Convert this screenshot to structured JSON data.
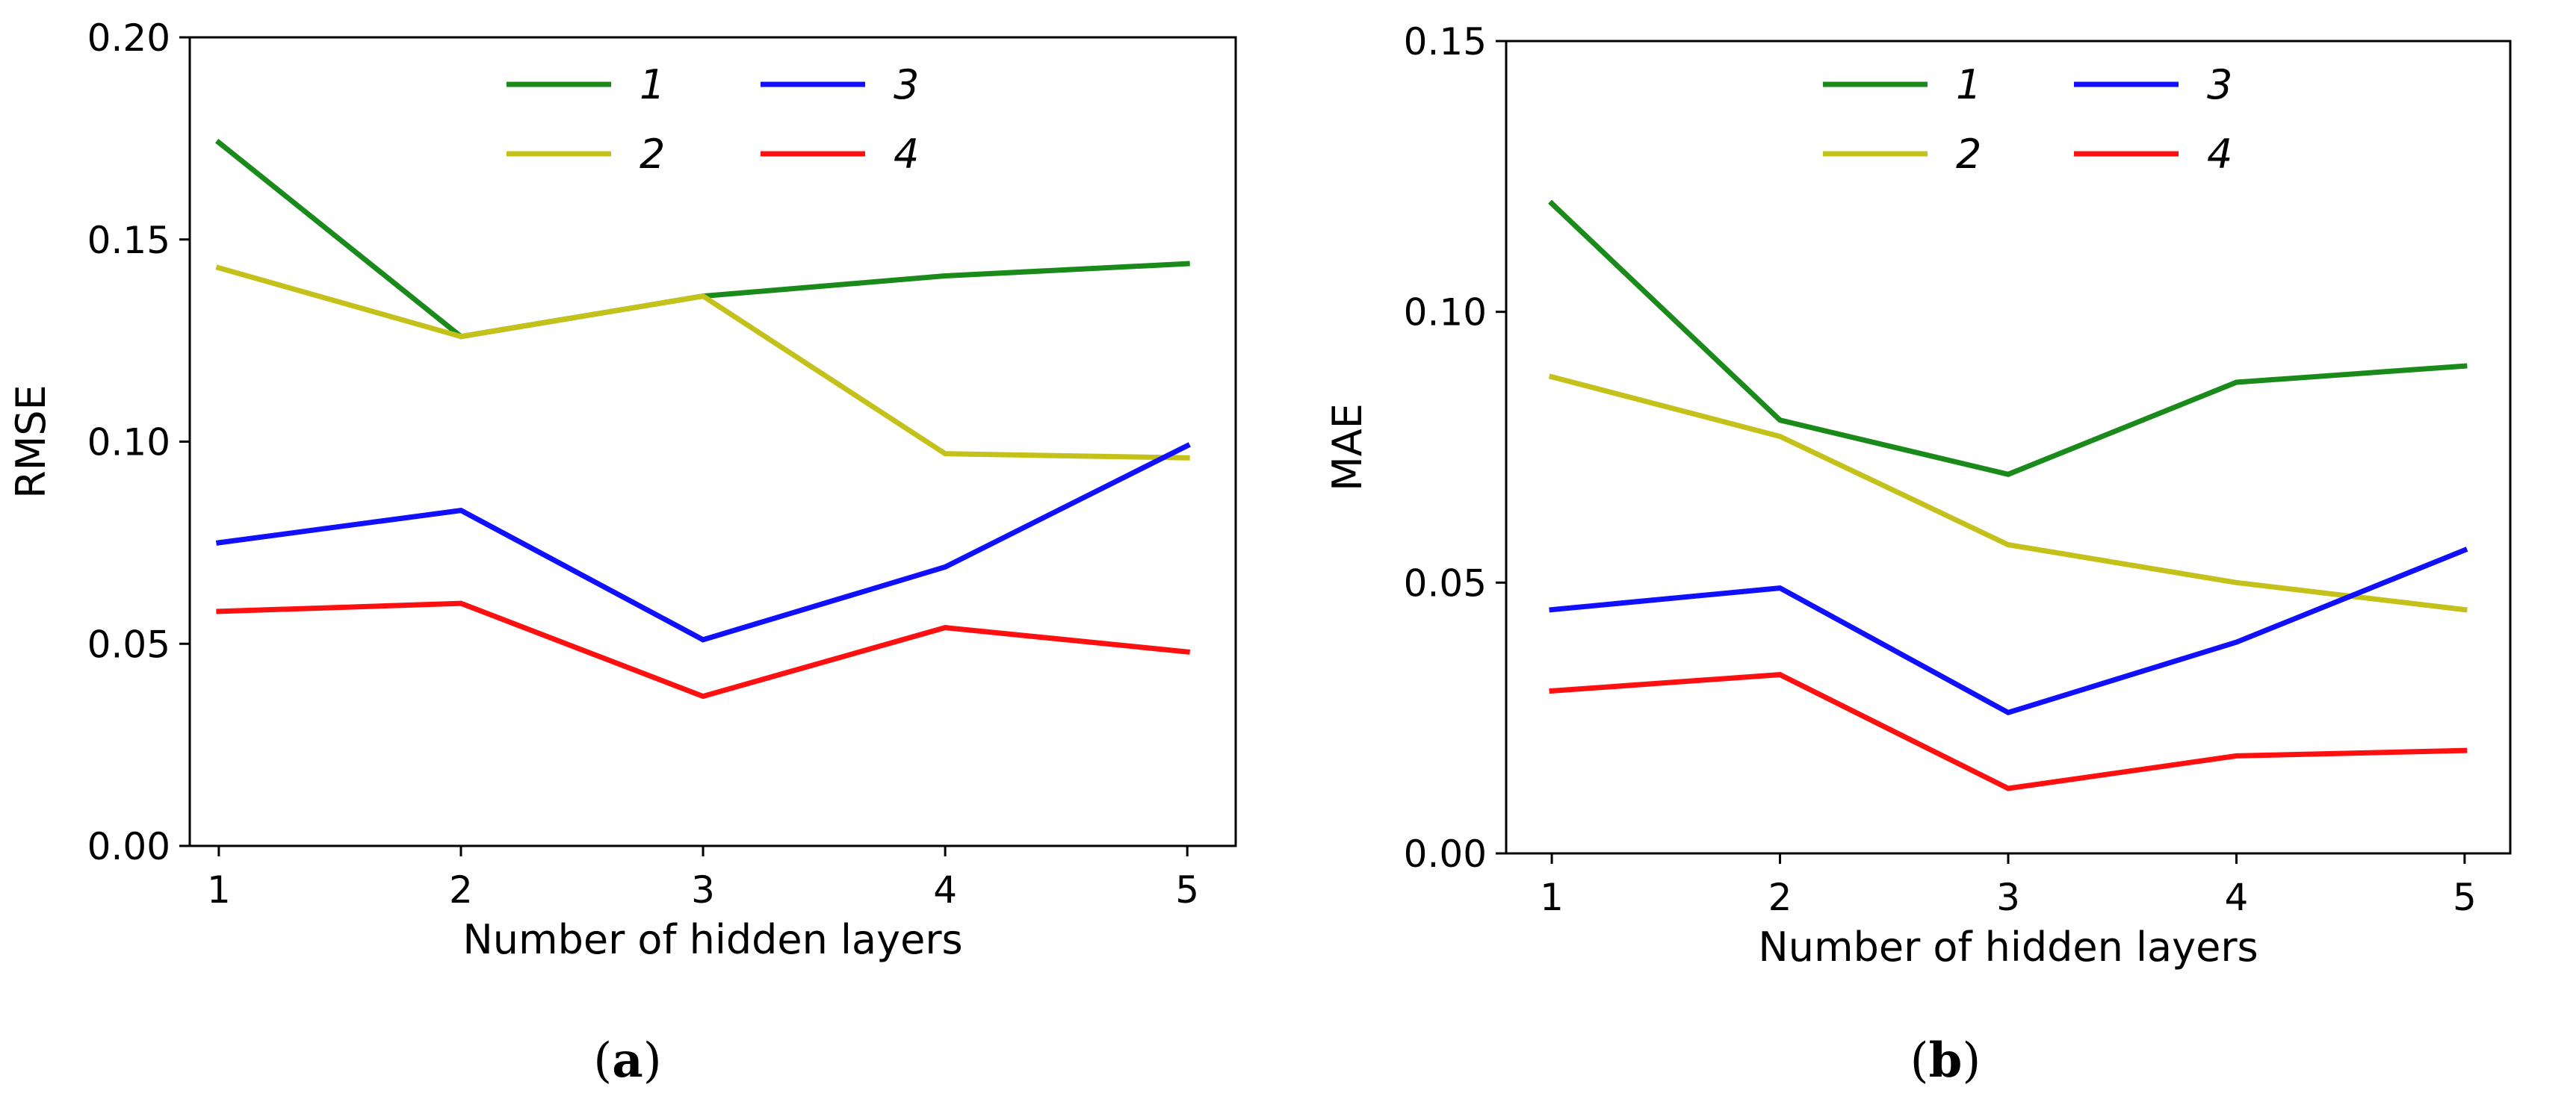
{
  "figure": {
    "caption_a_label": "a",
    "caption_b_label": "b"
  },
  "chart_data": [
    {
      "type": "line",
      "panel": "a",
      "title": "",
      "xlabel": "Number of hidden layers",
      "ylabel": "RMSE",
      "x": [
        1,
        2,
        3,
        4,
        5
      ],
      "xticks": [
        "1",
        "2",
        "3",
        "4",
        "5"
      ],
      "xlim": [
        0.88,
        5.2
      ],
      "yticks": [
        "0.00",
        "0.05",
        "0.10",
        "0.15",
        "0.20"
      ],
      "ylim": [
        0,
        0.2
      ],
      "grid": false,
      "legend": "top-center",
      "series": [
        {
          "name": "1",
          "color": "#1a8a1a",
          "values": [
            0.174,
            0.126,
            0.136,
            0.141,
            0.144
          ]
        },
        {
          "name": "2",
          "color": "#c4c21a",
          "values": [
            0.143,
            0.126,
            0.136,
            0.097,
            0.096
          ]
        },
        {
          "name": "3",
          "color": "#1010ff",
          "values": [
            0.075,
            0.083,
            0.051,
            0.069,
            0.099
          ]
        },
        {
          "name": "4",
          "color": "#ff1010",
          "values": [
            0.058,
            0.06,
            0.037,
            0.054,
            0.048
          ]
        }
      ]
    },
    {
      "type": "line",
      "panel": "b",
      "title": "",
      "xlabel": "Number of hidden layers",
      "ylabel": "MAE",
      "x": [
        1,
        2,
        3,
        4,
        5
      ],
      "xticks": [
        "1",
        "2",
        "3",
        "4",
        "5"
      ],
      "xlim": [
        0.8,
        5.2
      ],
      "yticks": [
        "0.00",
        "0.05",
        "0.10",
        "0.15"
      ],
      "ylim": [
        0,
        0.15
      ],
      "grid": false,
      "legend": "top-center",
      "series": [
        {
          "name": "1",
          "color": "#1a8a1a",
          "values": [
            0.12,
            0.08,
            0.07,
            0.087,
            0.09
          ]
        },
        {
          "name": "2",
          "color": "#c4c21a",
          "values": [
            0.088,
            0.077,
            0.057,
            0.05,
            0.045
          ]
        },
        {
          "name": "3",
          "color": "#1010ff",
          "values": [
            0.045,
            0.049,
            0.026,
            0.039,
            0.056
          ]
        },
        {
          "name": "4",
          "color": "#ff1010",
          "values": [
            0.03,
            0.033,
            0.012,
            0.018,
            0.019
          ]
        }
      ]
    }
  ]
}
